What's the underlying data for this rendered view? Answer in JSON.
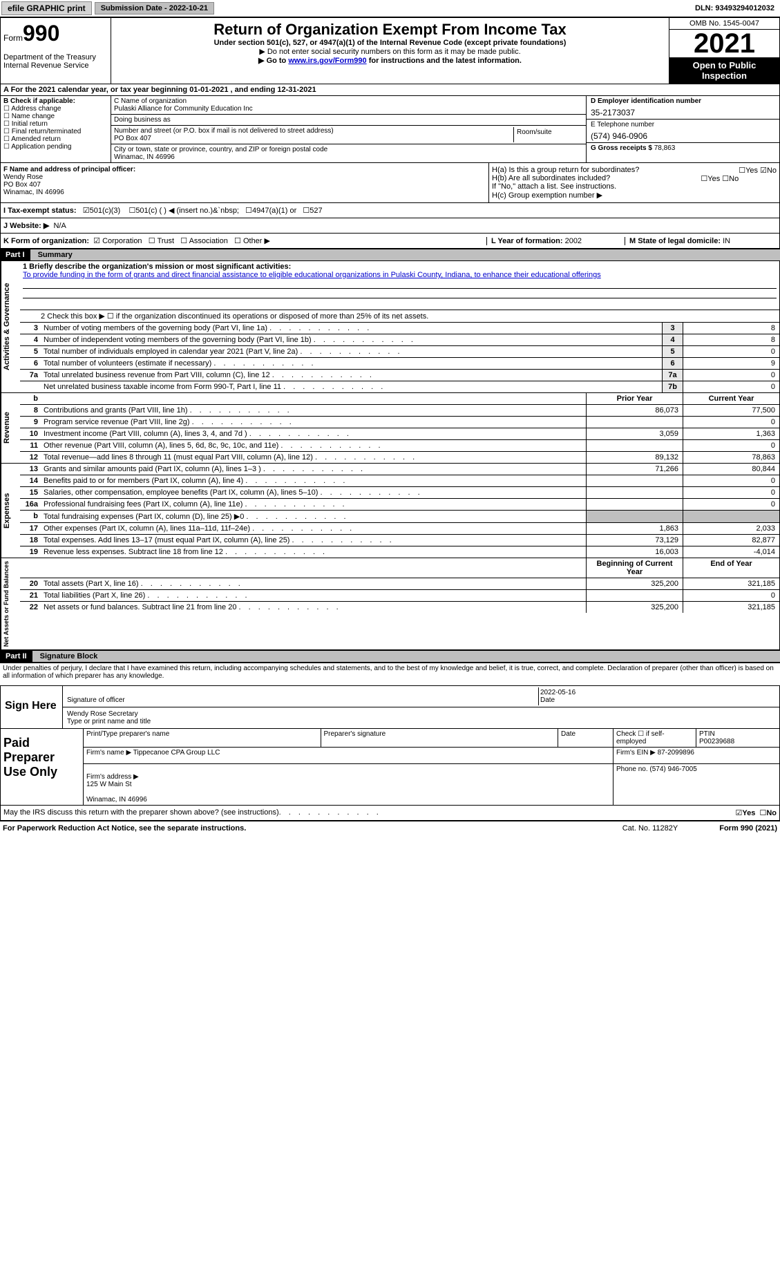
{
  "topbar": {
    "efile": "efile GRAPHIC print",
    "submission": "Submission Date - 2022-10-21",
    "dln": "DLN: 93493294012032"
  },
  "header": {
    "form_label": "Form",
    "form_number": "990",
    "title": "Return of Organization Exempt From Income Tax",
    "subtitle": "Under section 501(c), 527, or 4947(a)(1) of the Internal Revenue Code (except private foundations)",
    "note1": "▶ Do not enter social security numbers on this form as it may be made public.",
    "note2_prefix": "▶ Go to ",
    "note2_link": "www.irs.gov/Form990",
    "note2_suffix": " for instructions and the latest information.",
    "dept": "Department of the Treasury\nInternal Revenue Service",
    "omb": "OMB No. 1545-0047",
    "year": "2021",
    "open": "Open to Public Inspection"
  },
  "cal_year": "A For the 2021 calendar year, or tax year beginning 01-01-2021    , and ending 12-31-2021",
  "section_b": {
    "label": "B Check if applicable:",
    "opts": [
      "Address change",
      "Name change",
      "Initial return",
      "Final return/terminated",
      "Amended return",
      "Application pending"
    ]
  },
  "section_c": {
    "name_label": "C Name of organization",
    "name": "Pulaski Alliance for Community Education Inc",
    "dba_label": "Doing business as",
    "dba": "",
    "addr_label": "Number and street (or P.O. box if mail is not delivered to street address)",
    "addr": "PO Box 407",
    "room_label": "Room/suite",
    "city_label": "City or town, state or province, country, and ZIP or foreign postal code",
    "city": "Winamac, IN  46996"
  },
  "section_d": {
    "ein_label": "D Employer identification number",
    "ein": "35-2173037",
    "tel_label": "E Telephone number",
    "tel": "(574) 946-0906",
    "gross_label": "G Gross receipts $",
    "gross": "78,863"
  },
  "section_f": {
    "label": "F Name and address of principal officer:",
    "name": "Wendy Rose",
    "addr1": "PO Box 407",
    "addr2": "Winamac, IN  46996"
  },
  "section_h": {
    "ha": "H(a)  Is this a group return for subordinates?",
    "hb": "H(b)  Are all subordinates included?",
    "hb_note": "If \"No,\" attach a list. See instructions.",
    "hc": "H(c)  Group exemption number ▶",
    "yes": "Yes",
    "no": "No"
  },
  "status": {
    "label": "I    Tax-exempt status:",
    "opt1": "501(c)(3)",
    "opt2": "501(c) (   ) ◀ (insert no.)",
    "opt3": "4947(a)(1) or",
    "opt4": "527"
  },
  "website": {
    "label": "J    Website: ▶",
    "value": "N/A"
  },
  "section_k": {
    "label": "K Form of organization:",
    "opts": [
      "Corporation",
      "Trust",
      "Association",
      "Other ▶"
    ],
    "l_label": "L Year of formation:",
    "l_val": "2002",
    "m_label": "M State of legal domicile:",
    "m_val": "IN"
  },
  "part1": {
    "num": "Part I",
    "title": "Summary"
  },
  "mission": {
    "label": "1   Briefly describe the organization's mission or most significant activities:",
    "text": "To provide funding in the form of grants and direct financial assistance to eligible educational organizations in Pulaski County, Indiana, to enhance their educational offerings"
  },
  "line2": "2     Check this box ▶ ☐ if the organization discontinued its operations or disposed of more than 25% of its net assets.",
  "sidebars": {
    "activities": "Activities & Governance",
    "revenue": "Revenue",
    "expenses": "Expenses",
    "netassets": "Net Assets or Fund Balances"
  },
  "gov_lines": [
    {
      "n": "3",
      "d": "Number of voting members of the governing body (Part VI, line 1a)",
      "box": "3",
      "v": "8"
    },
    {
      "n": "4",
      "d": "Number of independent voting members of the governing body (Part VI, line 1b)",
      "box": "4",
      "v": "8"
    },
    {
      "n": "5",
      "d": "Total number of individuals employed in calendar year 2021 (Part V, line 2a)",
      "box": "5",
      "v": "0"
    },
    {
      "n": "6",
      "d": "Total number of volunteers (estimate if necessary)",
      "box": "6",
      "v": "9"
    },
    {
      "n": "7a",
      "d": "Total unrelated business revenue from Part VIII, column (C), line 12",
      "box": "7a",
      "v": "0"
    },
    {
      "n": "",
      "d": "Net unrelated business taxable income from Form 990-T, Part I, line 11",
      "box": "7b",
      "v": "0"
    }
  ],
  "col_headers": {
    "prior": "Prior Year",
    "curr": "Current Year",
    "begin": "Beginning of Current Year",
    "end": "End of Year"
  },
  "rev_lines": [
    {
      "n": "8",
      "d": "Contributions and grants (Part VIII, line 1h)",
      "p": "86,073",
      "c": "77,500"
    },
    {
      "n": "9",
      "d": "Program service revenue (Part VIII, line 2g)",
      "p": "",
      "c": "0"
    },
    {
      "n": "10",
      "d": "Investment income (Part VIII, column (A), lines 3, 4, and 7d )",
      "p": "3,059",
      "c": "1,363"
    },
    {
      "n": "11",
      "d": "Other revenue (Part VIII, column (A), lines 5, 6d, 8c, 9c, 10c, and 11e)",
      "p": "",
      "c": "0"
    },
    {
      "n": "12",
      "d": "Total revenue—add lines 8 through 11 (must equal Part VIII, column (A), line 12)",
      "p": "89,132",
      "c": "78,863"
    }
  ],
  "exp_lines": [
    {
      "n": "13",
      "d": "Grants and similar amounts paid (Part IX, column (A), lines 1–3 )",
      "p": "71,266",
      "c": "80,844"
    },
    {
      "n": "14",
      "d": "Benefits paid to or for members (Part IX, column (A), line 4)",
      "p": "",
      "c": "0"
    },
    {
      "n": "15",
      "d": "Salaries, other compensation, employee benefits (Part IX, column (A), lines 5–10)",
      "p": "",
      "c": "0"
    },
    {
      "n": "16a",
      "d": "Professional fundraising fees (Part IX, column (A), line 11e)",
      "p": "",
      "c": "0"
    },
    {
      "n": "b",
      "d": "Total fundraising expenses (Part IX, column (D), line 25) ▶0",
      "p": "grey",
      "c": "grey"
    },
    {
      "n": "17",
      "d": "Other expenses (Part IX, column (A), lines 11a–11d, 11f–24e)",
      "p": "1,863",
      "c": "2,033"
    },
    {
      "n": "18",
      "d": "Total expenses. Add lines 13–17 (must equal Part IX, column (A), line 25)",
      "p": "73,129",
      "c": "82,877"
    },
    {
      "n": "19",
      "d": "Revenue less expenses. Subtract line 18 from line 12",
      "p": "16,003",
      "c": "-4,014"
    }
  ],
  "net_lines": [
    {
      "n": "20",
      "d": "Total assets (Part X, line 16)",
      "p": "325,200",
      "c": "321,185"
    },
    {
      "n": "21",
      "d": "Total liabilities (Part X, line 26)",
      "p": "",
      "c": "0"
    },
    {
      "n": "22",
      "d": "Net assets or fund balances. Subtract line 21 from line 20",
      "p": "325,200",
      "c": "321,185"
    }
  ],
  "part2": {
    "num": "Part II",
    "title": "Signature Block"
  },
  "penalty": "Under penalties of perjury, I declare that I have examined this return, including accompanying schedules and statements, and to the best of my knowledge and belief, it is true, correct, and complete. Declaration of preparer (other than officer) is based on all information of which preparer has any knowledge.",
  "sign": {
    "here": "Sign Here",
    "sig_label": "Signature of officer",
    "date": "2022-05-16",
    "date_label": "Date",
    "name": "Wendy Rose  Secretary",
    "name_label": "Type or print name and title"
  },
  "paid": {
    "title": "Paid Preparer Use Only",
    "prep_name_label": "Print/Type preparer's name",
    "prep_sig_label": "Preparer's signature",
    "date_label": "Date",
    "check_label": "Check ☐ if self-employed",
    "ptin_label": "PTIN",
    "ptin": "P00239688",
    "firm_label": "Firm's name    ▶",
    "firm": "Tippecanoe CPA Group LLC",
    "ein_label": "Firm's EIN ▶",
    "ein": "87-2099896",
    "addr_label": "Firm's address ▶",
    "addr": "125 W Main St\n\nWinamac, IN  46996",
    "phone_label": "Phone no.",
    "phone": "(574) 946-7005"
  },
  "discuss": {
    "q": "May the IRS discuss this return with the preparer shown above? (see instructions)",
    "yes": "Yes",
    "no": "No"
  },
  "footer": {
    "left": "For Paperwork Reduction Act Notice, see the separate instructions.",
    "mid": "Cat. No. 11282Y",
    "right": "Form 990 (2021)"
  }
}
